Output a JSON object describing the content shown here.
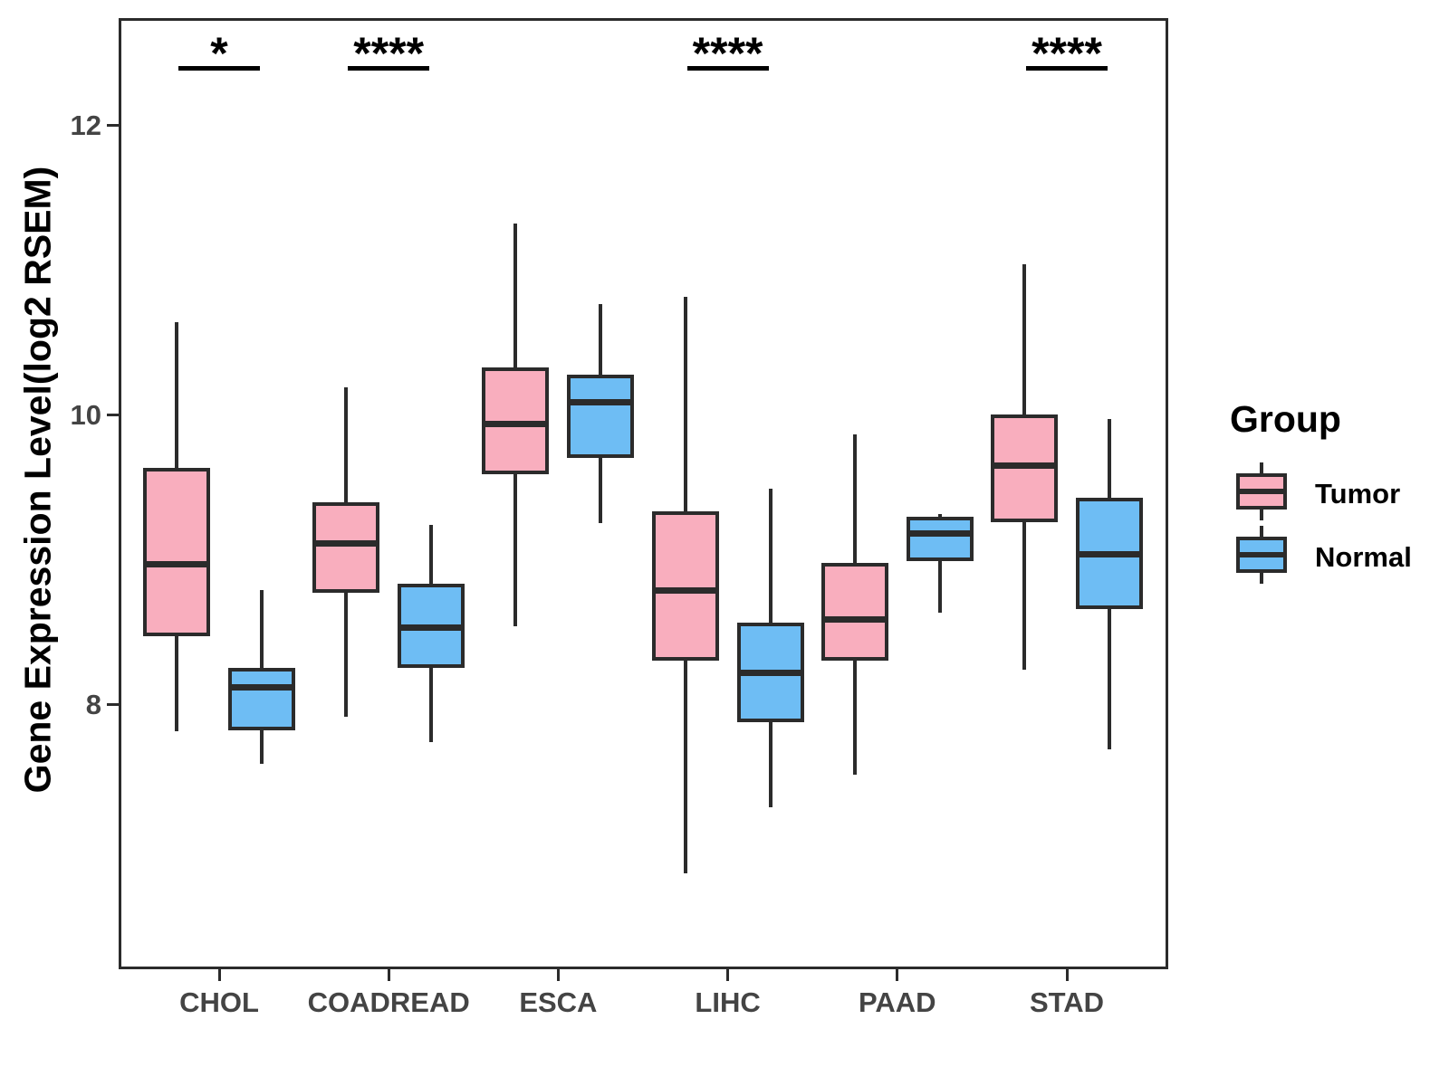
{
  "y_axis": {
    "title": "Gene Expression Level(log2 RSEM)",
    "tick_labels": [
      "12",
      "10",
      "8"
    ]
  },
  "legend": {
    "title": "Group",
    "items": [
      {
        "label": "Tumor",
        "color": "#F9AEBE"
      },
      {
        "label": "Normal",
        "color": "#6EBDF4"
      }
    ]
  },
  "chart_data": {
    "type": "boxplot",
    "title": "",
    "xlabel": "",
    "ylabel": "Gene Expression Level(log2 RSEM)",
    "categories": [
      "CHOL",
      "COADREAD",
      "ESCA",
      "LIHC",
      "PAAD",
      "STAD"
    ],
    "yticks": [
      8,
      10,
      12
    ],
    "ylim": [
      6.2,
      12.7
    ],
    "grid": false,
    "legend_position": "right",
    "series": [
      {
        "name": "Tumor",
        "color": "#F9AEBE",
        "boxes": [
          {
            "category": "CHOL",
            "whisker_low": 7.81,
            "q1": 8.48,
            "median": 8.97,
            "q3": 9.62,
            "whisker_high": 10.64
          },
          {
            "category": "COADREAD",
            "whisker_low": 7.91,
            "q1": 8.78,
            "median": 9.11,
            "q3": 9.38,
            "whisker_high": 10.19
          },
          {
            "category": "ESCA",
            "whisker_low": 8.54,
            "q1": 9.6,
            "median": 9.94,
            "q3": 10.31,
            "whisker_high": 11.32
          },
          {
            "category": "LIHC",
            "whisker_low": 6.83,
            "q1": 8.31,
            "median": 8.79,
            "q3": 9.32,
            "whisker_high": 10.81
          },
          {
            "category": "PAAD",
            "whisker_low": 7.51,
            "q1": 8.31,
            "median": 8.59,
            "q3": 8.96,
            "whisker_high": 9.86
          },
          {
            "category": "STAD",
            "whisker_low": 8.24,
            "q1": 9.27,
            "median": 9.65,
            "q3": 9.99,
            "whisker_high": 11.04
          }
        ]
      },
      {
        "name": "Normal",
        "color": "#6EBDF4",
        "boxes": [
          {
            "category": "CHOL",
            "whisker_low": 7.59,
            "q1": 7.83,
            "median": 8.12,
            "q3": 8.24,
            "whisker_high": 8.79
          },
          {
            "category": "COADREAD",
            "whisker_low": 7.74,
            "q1": 8.26,
            "median": 8.53,
            "q3": 8.82,
            "whisker_high": 9.24
          },
          {
            "category": "ESCA",
            "whisker_low": 9.25,
            "q1": 9.71,
            "median": 10.09,
            "q3": 10.26,
            "whisker_high": 10.76
          },
          {
            "category": "LIHC",
            "whisker_low": 7.29,
            "q1": 7.89,
            "median": 8.22,
            "q3": 8.55,
            "whisker_high": 9.49
          },
          {
            "category": "PAAD",
            "whisker_low": 8.63,
            "q1": 9.0,
            "median": 9.18,
            "q3": 9.28,
            "whisker_high": 9.31
          },
          {
            "category": "STAD",
            "whisker_low": 7.69,
            "q1": 8.67,
            "median": 9.04,
            "q3": 9.41,
            "whisker_high": 9.97
          }
        ]
      }
    ],
    "significance": [
      {
        "category": "CHOL",
        "label": "*"
      },
      {
        "category": "COADREAD",
        "label": "****"
      },
      {
        "category": "LIHC",
        "label": "****"
      },
      {
        "category": "STAD",
        "label": "****"
      }
    ]
  }
}
